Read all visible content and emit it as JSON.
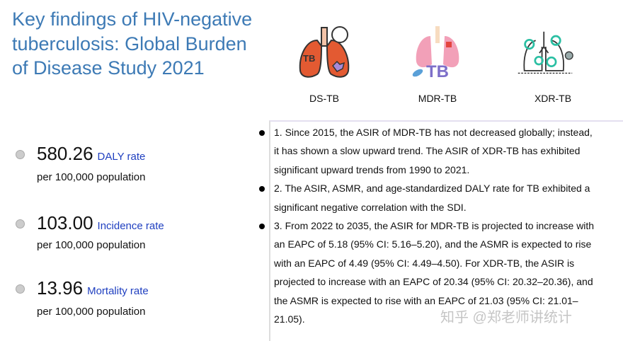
{
  "title": "Key findings of HIV-negative tuberculosis: Global Burden of Disease Study 2021",
  "stats": [
    {
      "value": "580.26",
      "label": "DALY rate",
      "unit": "per 100,000 population"
    },
    {
      "value": "103.00",
      "label": "Incidence rate",
      "unit": "per 100,000 population"
    },
    {
      "value": "13.96",
      "label": "Mortality rate",
      "unit": "per 100,000 population"
    }
  ],
  "types": [
    {
      "label": "DS-TB",
      "icon": "lungs-bacteria-icon"
    },
    {
      "label": "MDR-TB",
      "icon": "lungs-pills-icon"
    },
    {
      "label": "XDR-TB",
      "icon": "lungs-virus-icon"
    }
  ],
  "findings": [
    "1. Since 2015, the ASIR of MDR-TB has not decreased globally; instead, it has shown a slow upward trend. The ASIR of XDR-TB has exhibited significant upward trends from 1990 to 2021.",
    "2. The ASIR, ASMR, and age-standardized DALY rate for TB exhibited a significant negative correlation with the SDI.",
    "3. From 2022 to 2035, the ASIR for MDR-TB is projected to increase with an EAPC of 5.18 (95% CI: 5.16–5.20), and the ASMR is expected to rise with an EAPC of 4.49 (95% CI: 4.49–4.50). For XDR-TB, the ASIR is projected to increase with an EAPC of 20.34 (95% CI: 20.32–20.36), and the ASMR is expected to rise with an EAPC of 21.03 (95% CI: 21.01–21.05)."
  ],
  "watermark": "知乎 @郑老师讲统计",
  "colors": {
    "title": "#3d7ab5",
    "label": "#1f3fc0"
  }
}
